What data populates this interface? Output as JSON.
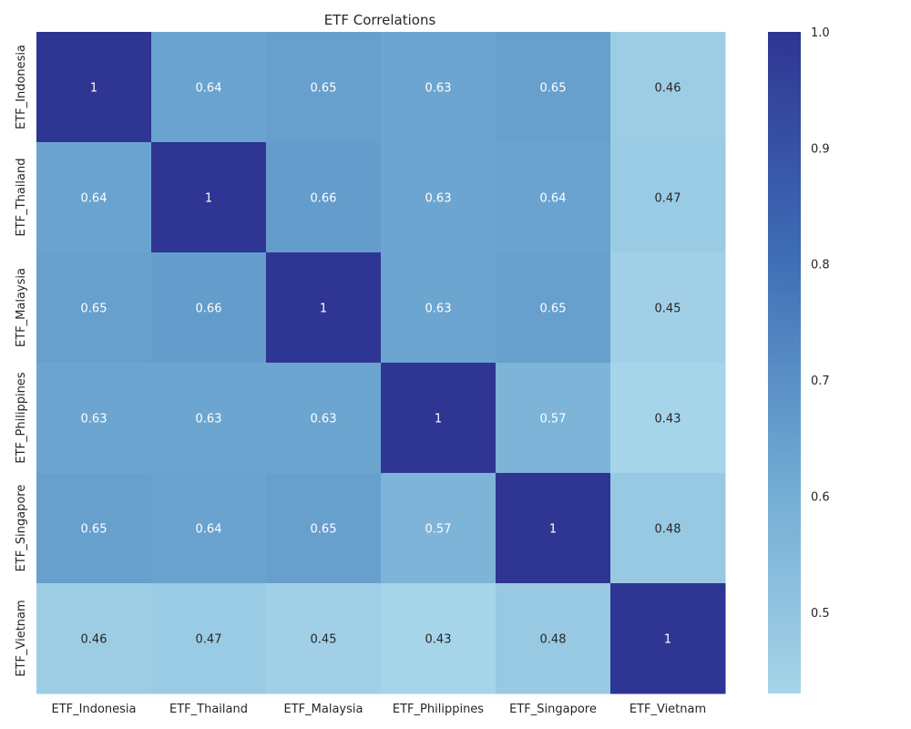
{
  "chart_data": {
    "type": "heatmap",
    "title": "ETF Correlations",
    "labels": [
      "ETF_Indonesia",
      "ETF_Thailand",
      "ETF_Malaysia",
      "ETF_Philippines",
      "ETF_Singapore",
      "ETF_Vietnam"
    ],
    "matrix": [
      [
        1,
        0.64,
        0.65,
        0.63,
        0.65,
        0.46
      ],
      [
        0.64,
        1,
        0.66,
        0.63,
        0.64,
        0.47
      ],
      [
        0.65,
        0.66,
        1,
        0.63,
        0.65,
        0.45
      ],
      [
        0.63,
        0.63,
        0.63,
        1,
        0.57,
        0.43
      ],
      [
        0.65,
        0.64,
        0.65,
        0.57,
        1,
        0.48
      ],
      [
        0.46,
        0.47,
        0.45,
        0.43,
        0.48,
        1
      ]
    ],
    "colorbar": {
      "min": 0.43,
      "max": 1.0,
      "ticks": [
        "0.5",
        "0.6",
        "0.7",
        "0.8",
        "0.9",
        "1.0"
      ],
      "colormap": [
        "#a6d4e9",
        "#6fa9d2",
        "#3d6cb5",
        "#2f3592"
      ]
    },
    "grid": false
  }
}
